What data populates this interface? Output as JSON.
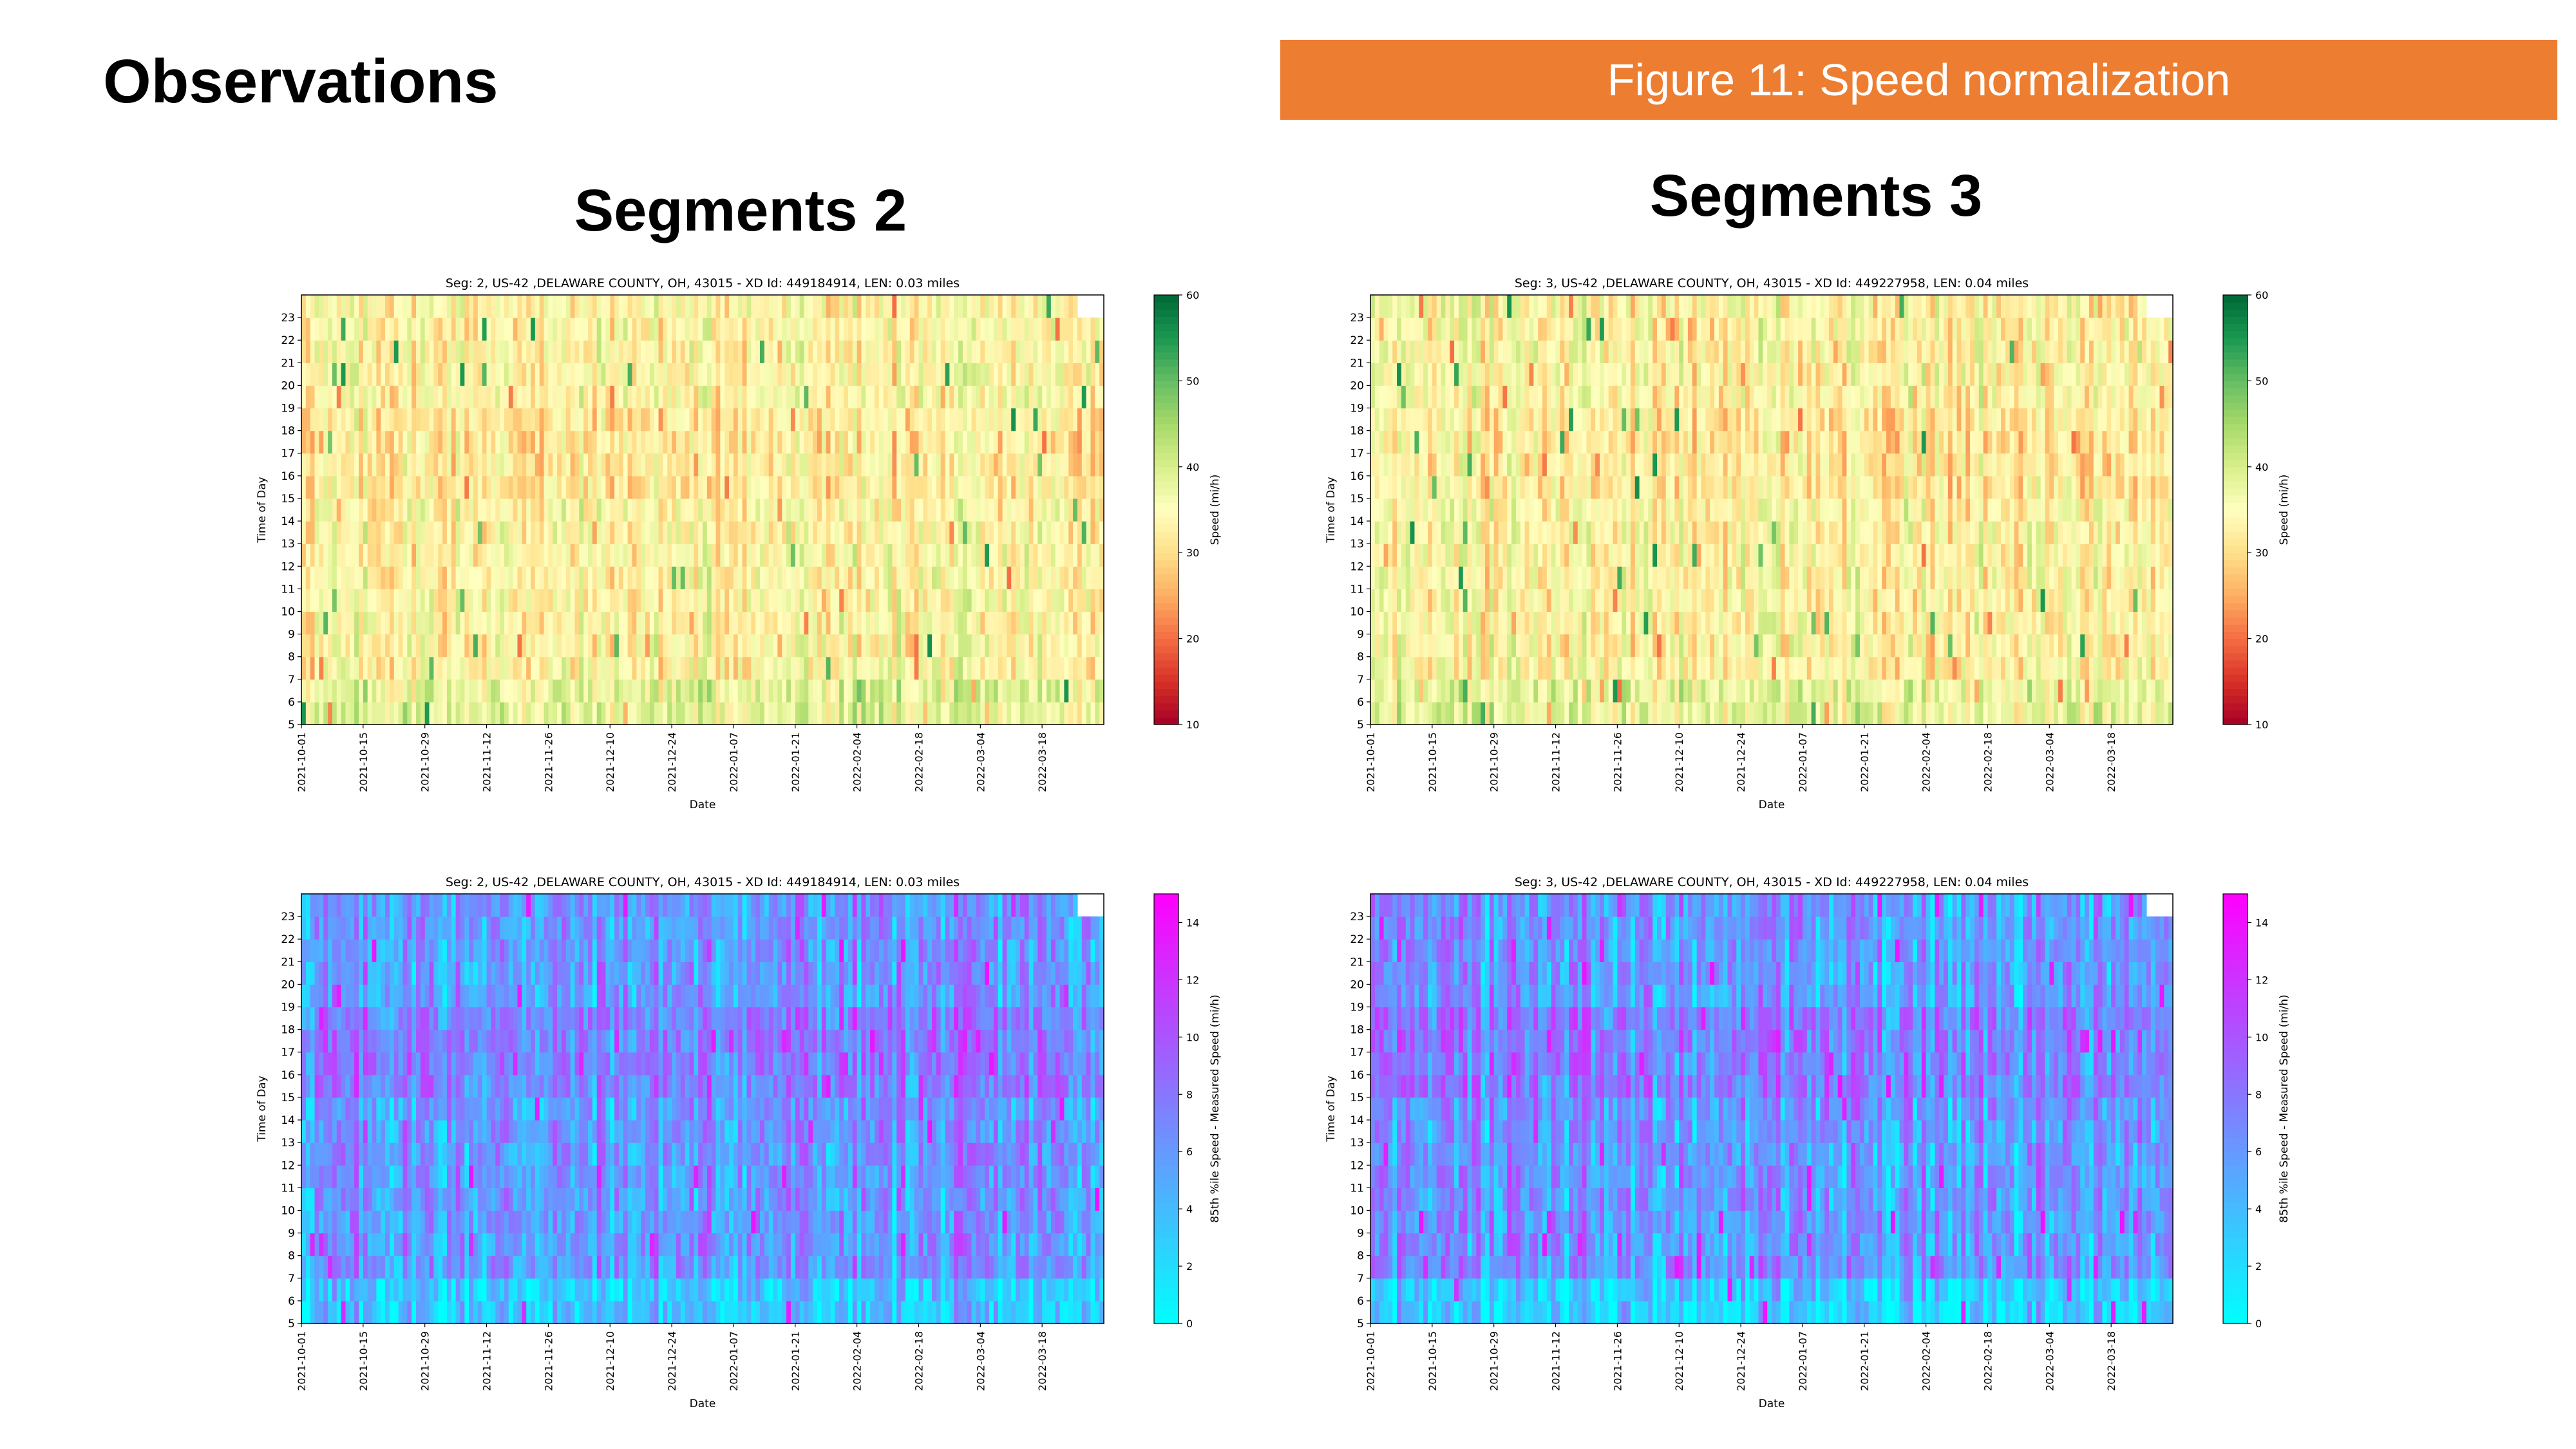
{
  "slide": {
    "title": "Observations",
    "figure_caption": "Figure 11: Speed normalization",
    "accent_color": "#ed7d31"
  },
  "columns": [
    {
      "heading": "Segments 2"
    },
    {
      "heading": "Segments 3"
    }
  ],
  "chart_data": [
    {
      "type": "heatmap",
      "title": "Seg: 2, US-42 ,DELAWARE COUNTY, OH, 43015 - XD Id: 449184914, LEN: 0.03 miles",
      "xlabel": "Date",
      "ylabel": "Time of Day",
      "x_ticks": [
        "2021-10-01",
        "2021-10-15",
        "2021-10-29",
        "2021-11-12",
        "2021-11-26",
        "2021-12-10",
        "2021-12-24",
        "2022-01-07",
        "2022-01-21",
        "2022-02-04",
        "2022-02-18",
        "2022-03-04",
        "2022-03-18"
      ],
      "y_ticks": [
        "5",
        "6",
        "7",
        "8",
        "9",
        "10",
        "11",
        "12",
        "13",
        "14",
        "15",
        "16",
        "17",
        "18",
        "19",
        "20",
        "21",
        "22",
        "23"
      ],
      "x_range": [
        "2021-10-01",
        "2022-03-31"
      ],
      "y_range": [
        5,
        24
      ],
      "colorbar": {
        "label": "Speed (mi/h)",
        "ticks": [
          "10",
          "20",
          "30",
          "40",
          "50",
          "60"
        ],
        "min": 10,
        "max": 60,
        "colormap": "RdYlGn"
      },
      "value_summary": "daily-hour speeds mostly 28-42 mi/h (yellow/light green)"
    },
    {
      "type": "heatmap",
      "title": "Seg: 3, US-42 ,DELAWARE COUNTY, OH, 43015 - XD Id: 449227958, LEN: 0.04 miles",
      "xlabel": "Date",
      "ylabel": "Time of Day",
      "x_ticks": [
        "2021-10-01",
        "2021-10-15",
        "2021-10-29",
        "2021-11-12",
        "2021-11-26",
        "2021-12-10",
        "2021-12-24",
        "2022-01-07",
        "2022-01-21",
        "2022-02-04",
        "2022-02-18",
        "2022-03-04",
        "2022-03-18"
      ],
      "y_ticks": [
        "5",
        "6",
        "7",
        "8",
        "9",
        "10",
        "11",
        "12",
        "13",
        "14",
        "15",
        "16",
        "17",
        "18",
        "19",
        "20",
        "21",
        "22",
        "23"
      ],
      "x_range": [
        "2021-10-01",
        "2022-03-31"
      ],
      "y_range": [
        5,
        24
      ],
      "colorbar": {
        "label": "Speed (mi/h)",
        "ticks": [
          "10",
          "20",
          "30",
          "40",
          "50",
          "60"
        ],
        "min": 10,
        "max": 60,
        "colormap": "RdYlGn"
      },
      "value_summary": "daily-hour speeds mostly 28-42 mi/h (yellow/light green)"
    },
    {
      "type": "heatmap",
      "title": "Seg: 2, US-42 ,DELAWARE COUNTY, OH, 43015 - XD Id: 449184914, LEN: 0.03 miles",
      "xlabel": "Date",
      "ylabel": "Time of Day",
      "x_ticks": [
        "2021-10-01",
        "2021-10-15",
        "2021-10-29",
        "2021-11-12",
        "2021-11-26",
        "2021-12-10",
        "2021-12-24",
        "2022-01-07",
        "2022-01-21",
        "2022-02-04",
        "2022-02-18",
        "2022-03-04",
        "2022-03-18"
      ],
      "y_ticks": [
        "5",
        "6",
        "7",
        "8",
        "9",
        "10",
        "11",
        "12",
        "13",
        "14",
        "15",
        "16",
        "17",
        "18",
        "19",
        "20",
        "21",
        "22",
        "23"
      ],
      "x_range": [
        "2021-10-01",
        "2022-03-31"
      ],
      "y_range": [
        5,
        24
      ],
      "colorbar": {
        "label": "85th %ile Speed - Measured Speed (mi/h)",
        "ticks": [
          "0",
          "2",
          "4",
          "6",
          "8",
          "10",
          "12",
          "14"
        ],
        "min": 0,
        "max": 15,
        "colormap": "cool"
      },
      "value_summary": "differences mostly 2-10 mi/h (cyan to violet)"
    },
    {
      "type": "heatmap",
      "title": "Seg: 3, US-42 ,DELAWARE COUNTY, OH, 43015 - XD Id: 449227958, LEN: 0.04 miles",
      "xlabel": "Date",
      "ylabel": "Time of Day",
      "x_ticks": [
        "2021-10-01",
        "2021-10-15",
        "2021-10-29",
        "2021-11-12",
        "2021-11-26",
        "2021-12-10",
        "2021-12-24",
        "2022-01-07",
        "2022-01-21",
        "2022-02-04",
        "2022-02-18",
        "2022-03-04",
        "2022-03-18"
      ],
      "y_ticks": [
        "5",
        "6",
        "7",
        "8",
        "9",
        "10",
        "11",
        "12",
        "13",
        "14",
        "15",
        "16",
        "17",
        "18",
        "19",
        "20",
        "21",
        "22",
        "23"
      ],
      "x_range": [
        "2021-10-01",
        "2022-03-31"
      ],
      "y_range": [
        5,
        24
      ],
      "colorbar": {
        "label": "85th %ile Speed - Measured Speed (mi/h)",
        "ticks": [
          "0",
          "2",
          "4",
          "6",
          "8",
          "10",
          "12",
          "14"
        ],
        "min": 0,
        "max": 15,
        "colormap": "cool"
      },
      "value_summary": "differences mostly 2-10 mi/h (cyan to violet)"
    }
  ]
}
